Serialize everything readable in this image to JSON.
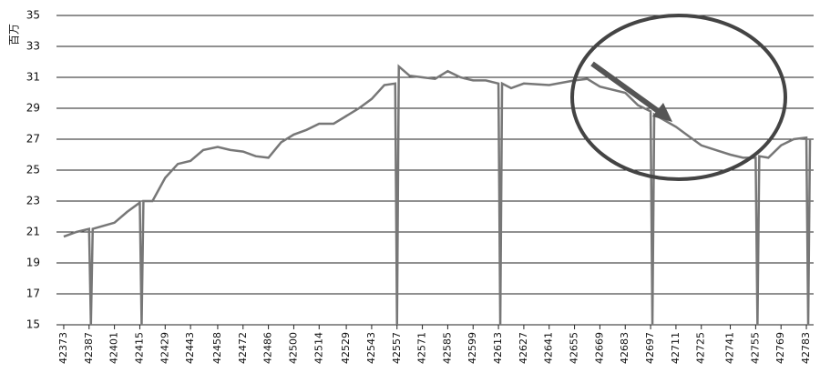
{
  "chart_data": {
    "type": "line",
    "y_label": "百万",
    "x": [
      42373,
      42380,
      42387,
      42388,
      42389,
      42395,
      42401,
      42408,
      42415,
      42416,
      42417,
      42422,
      42429,
      42436,
      42443,
      42450,
      42458,
      42465,
      42472,
      42479,
      42486,
      42493,
      42500,
      42507,
      42514,
      42522,
      42529,
      42536,
      42543,
      42550,
      42556,
      42557,
      42558,
      42564,
      42571,
      42578,
      42585,
      42592,
      42599,
      42606,
      42613,
      42614,
      42615,
      42620,
      42627,
      42641,
      42655,
      42662,
      42669,
      42683,
      42690,
      42697,
      42698,
      42699,
      42711,
      42718,
      42725,
      42733,
      42741,
      42748,
      42755,
      42756,
      42757,
      42762,
      42769,
      42776,
      42783,
      42784,
      42785
    ],
    "series": [
      {
        "color": "#777777",
        "values": [
          20.7,
          21.0,
          21.2,
          15,
          21.2,
          21.4,
          21.6,
          22.3,
          22.9,
          15,
          23.0,
          23.0,
          24.5,
          25.4,
          25.6,
          26.3,
          26.5,
          26.3,
          26.2,
          25.9,
          25.8,
          26.8,
          27.3,
          27.6,
          28.0,
          28.0,
          28.5,
          29.0,
          29.6,
          30.5,
          30.6,
          15,
          31.7,
          31.1,
          31.0,
          30.9,
          31.4,
          31.0,
          30.8,
          30.8,
          30.6,
          15,
          30.6,
          30.3,
          30.6,
          30.5,
          30.8,
          30.9,
          30.4,
          30.0,
          29.2,
          28.8,
          15,
          28.6,
          27.8,
          27.2,
          26.6,
          26.3,
          26.0,
          25.8,
          25.8,
          15,
          25.9,
          25.8,
          26.6,
          27.0,
          27.1,
          15,
          27.0
        ]
      }
    ],
    "xlim": [
      42369,
      42787
    ],
    "xticks": [
      42373,
      42387,
      42401,
      42415,
      42429,
      42443,
      42458,
      42472,
      42486,
      42500,
      42514,
      42529,
      42543,
      42557,
      42571,
      42585,
      42599,
      42613,
      42627,
      42641,
      42655,
      42669,
      42683,
      42697,
      42711,
      42725,
      42741,
      42755,
      42769,
      42783
    ],
    "ylim": [
      15,
      35
    ],
    "yticks": [
      15,
      17,
      19,
      21,
      23,
      25,
      27,
      29,
      31,
      33,
      35
    ],
    "grid": true
  }
}
